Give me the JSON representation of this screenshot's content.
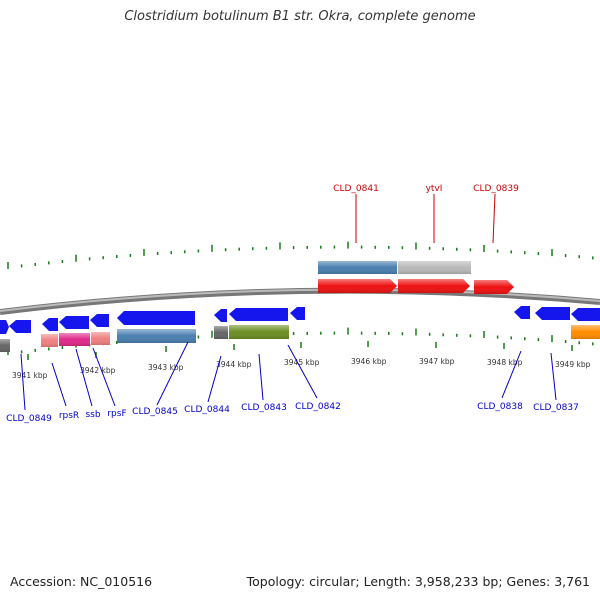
{
  "title": "Clostridium botulinum B1 str. Okra, complete genome",
  "footer": {
    "accession": "Accession: NC_010516",
    "summary": "Topology: circular; Length: 3,958,233 bp; Genes: 3,761"
  },
  "colors": {
    "forward_label": "#cc0000",
    "reverse_label": "#0000cc",
    "tick": "#1a7a1a",
    "backbone": "#808080",
    "cds_forward": "#ee0000",
    "cds_reverse": "#0000ee"
  },
  "scale_labels": [
    "3941 kbp",
    "3942 kbp",
    "3943 kbp",
    "3944 kbp",
    "3945 kbp",
    "3946 kbp",
    "3947 kbp",
    "3948 kbp",
    "3949 kbp"
  ],
  "forward_labels": [
    "CLD_0841",
    "ytvI",
    "CLD_0839"
  ],
  "reverse_labels": [
    "CLD_0849",
    "rpsR",
    "ssb",
    "rpsF",
    "CLD_0845",
    "CLD_0844",
    "CLD_0843",
    "CLD_0842",
    "CLD_0838",
    "CLD_0837"
  ]
}
